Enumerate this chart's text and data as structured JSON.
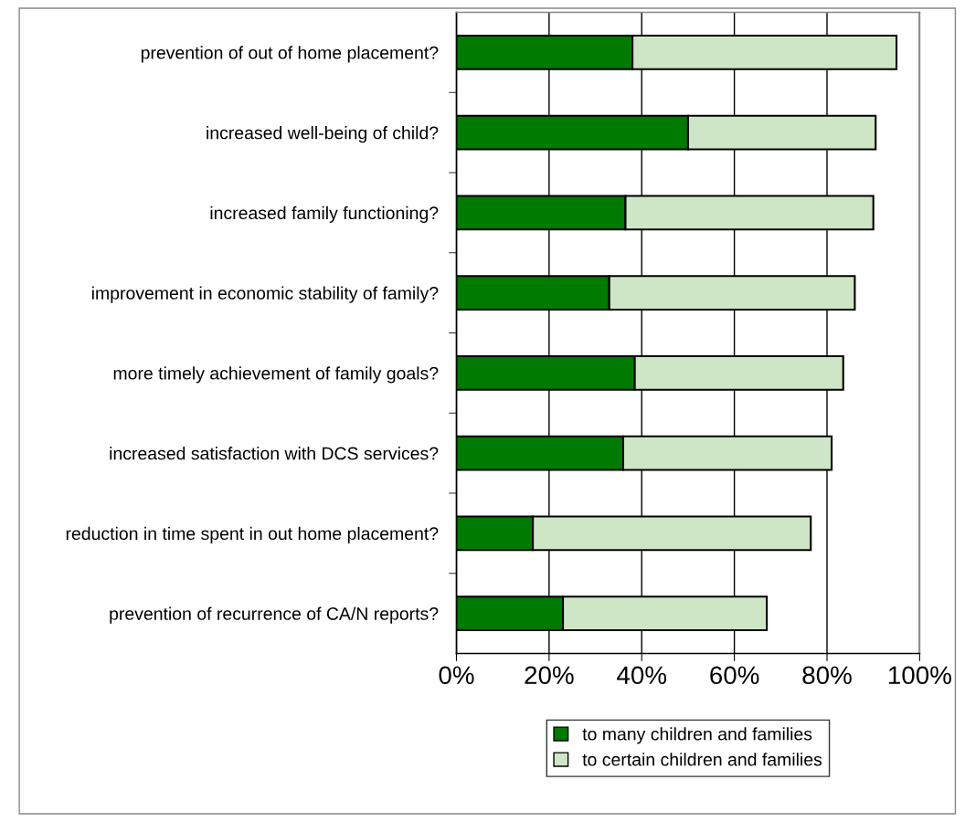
{
  "chart_data": {
    "type": "bar",
    "orientation": "horizontal",
    "stacked": true,
    "categories": [
      "prevention of out of home placement?",
      "increased well-being of child?",
      "increased family functioning?",
      "improvement in economic stability of family?",
      "more timely achievement of family goals?",
      "increased satisfaction with DCS services?",
      "reduction in time spent in out home placement?",
      "prevention of recurrence of CA/N reports?"
    ],
    "series": [
      {
        "name": "to many children and families",
        "color": "#007a00",
        "values": [
          38,
          50,
          36.5,
          33,
          38.5,
          36,
          16.5,
          23
        ]
      },
      {
        "name": "to certain children and families",
        "color": "#cfe6c6",
        "values": [
          57,
          40.5,
          53.5,
          53,
          45,
          45,
          60,
          44
        ]
      }
    ],
    "xlim": [
      0,
      100
    ],
    "xticks": [
      {
        "value": 0,
        "label": "0%"
      },
      {
        "value": 20,
        "label": "20%"
      },
      {
        "value": 40,
        "label": "40%"
      },
      {
        "value": 60,
        "label": "60%"
      },
      {
        "value": 80,
        "label": "80%"
      },
      {
        "value": 100,
        "label": "100%"
      }
    ],
    "grid": "x",
    "legend": "bottom"
  }
}
